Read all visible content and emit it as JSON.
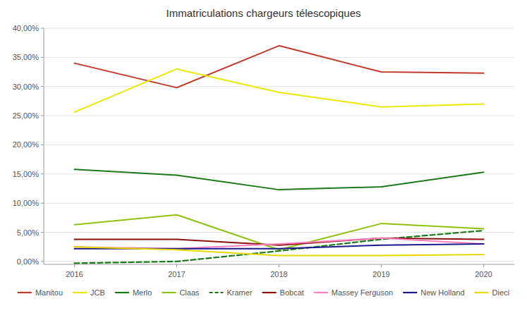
{
  "chart_data": {
    "type": "line",
    "title": "Immatriculations chargeurs télescopiques",
    "x": [
      2016,
      2017,
      2018,
      2019,
      2020
    ],
    "xlim": [
      2015.7,
      2020.3
    ],
    "xticks": [
      2016,
      2017,
      2018,
      2019,
      2020
    ],
    "ylim": [
      -0.005,
      0.4
    ],
    "yticks": [
      {
        "value": 0.0,
        "label": "0,00%"
      },
      {
        "value": 0.05,
        "label": "5,00%"
      },
      {
        "value": 0.1,
        "label": "10,00%"
      },
      {
        "value": 0.15,
        "label": "15,00%"
      },
      {
        "value": 0.2,
        "label": "20,00%"
      },
      {
        "value": 0.25,
        "label": "25,00%"
      },
      {
        "value": 0.3,
        "label": "30,00%"
      },
      {
        "value": 0.35,
        "label": "35,00%"
      },
      {
        "value": 0.4,
        "label": "40,00%"
      }
    ],
    "grid": true,
    "legend": "bottom",
    "series": [
      {
        "name": "Manitou",
        "color": "#c0392b",
        "line_style": "solid",
        "values": [
          0.34,
          0.298,
          0.37,
          0.325,
          0.323
        ]
      },
      {
        "name": "JCB",
        "color": "#e8e800",
        "line_style": "solid",
        "values": [
          0.256,
          0.33,
          0.29,
          0.265,
          0.27
        ]
      },
      {
        "name": "Merlo",
        "color": "#1a7a1a",
        "line_style": "solid",
        "values": [
          0.158,
          0.148,
          0.123,
          0.128,
          0.153
        ]
      },
      {
        "name": "Claas",
        "color": "#90c010",
        "line_style": "solid",
        "values": [
          0.063,
          0.08,
          0.02,
          0.065,
          0.056
        ]
      },
      {
        "name": "Kramer",
        "color": "#1a7a1a",
        "line_style": "dashed",
        "values": [
          -0.003,
          0.0,
          0.018,
          0.038,
          0.053
        ]
      },
      {
        "name": "Bobcat",
        "color": "#8b1010",
        "line_style": "solid",
        "values": [
          0.038,
          0.038,
          0.028,
          0.04,
          0.038
        ]
      },
      {
        "name": "Massey Ferguson",
        "color": "#ff80c0",
        "line_style": "solid",
        "values": [
          0.025,
          0.022,
          0.03,
          0.04,
          0.03
        ]
      },
      {
        "name": "New Holland",
        "color": "#1a1a8b",
        "line_style": "solid",
        "values": [
          0.022,
          0.022,
          0.022,
          0.028,
          0.03
        ]
      },
      {
        "name": "Dieci",
        "color": "#e8d800",
        "line_style": "solid",
        "values": [
          0.025,
          0.02,
          0.01,
          0.01,
          0.012
        ]
      }
    ]
  }
}
